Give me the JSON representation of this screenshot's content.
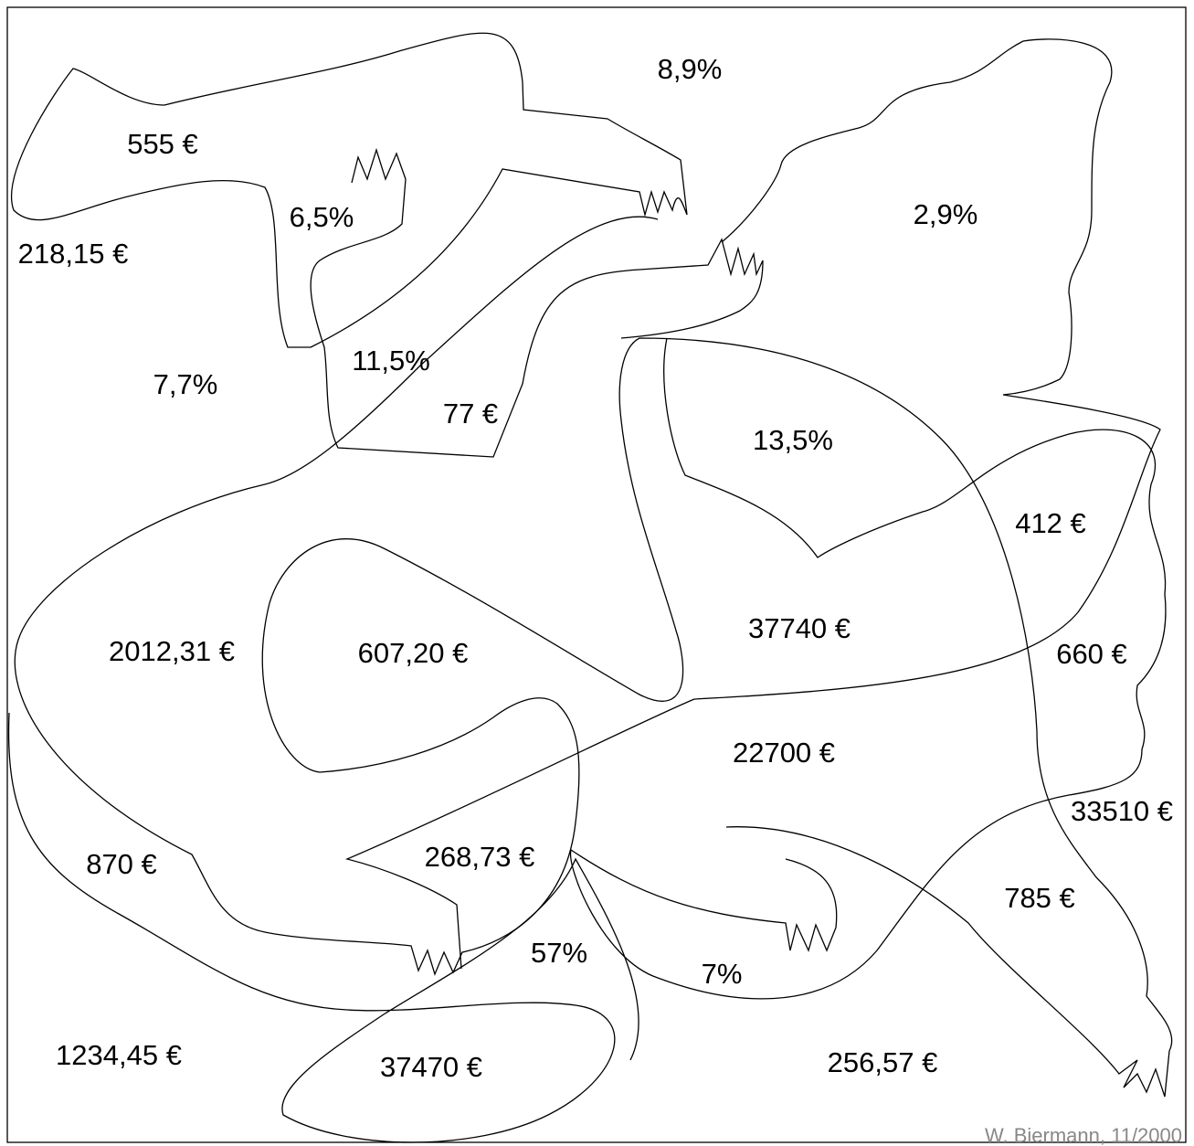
{
  "labels": [
    "8,9%",
    "555 €",
    "6,5%",
    "2,9%",
    "218,15 €",
    "7,7%",
    "11,5%",
    "77 €",
    "13,5%",
    "412 €",
    "37740 €",
    "2012,31 €",
    "607,20 €",
    "660 €",
    "22700 €",
    "33510 €",
    "870 €",
    "268,73 €",
    "785 €",
    "57%",
    "7%",
    "1234,45 €",
    "37470 €",
    "256,57 €"
  ],
  "credit": "W. Biermann, 11/2000"
}
